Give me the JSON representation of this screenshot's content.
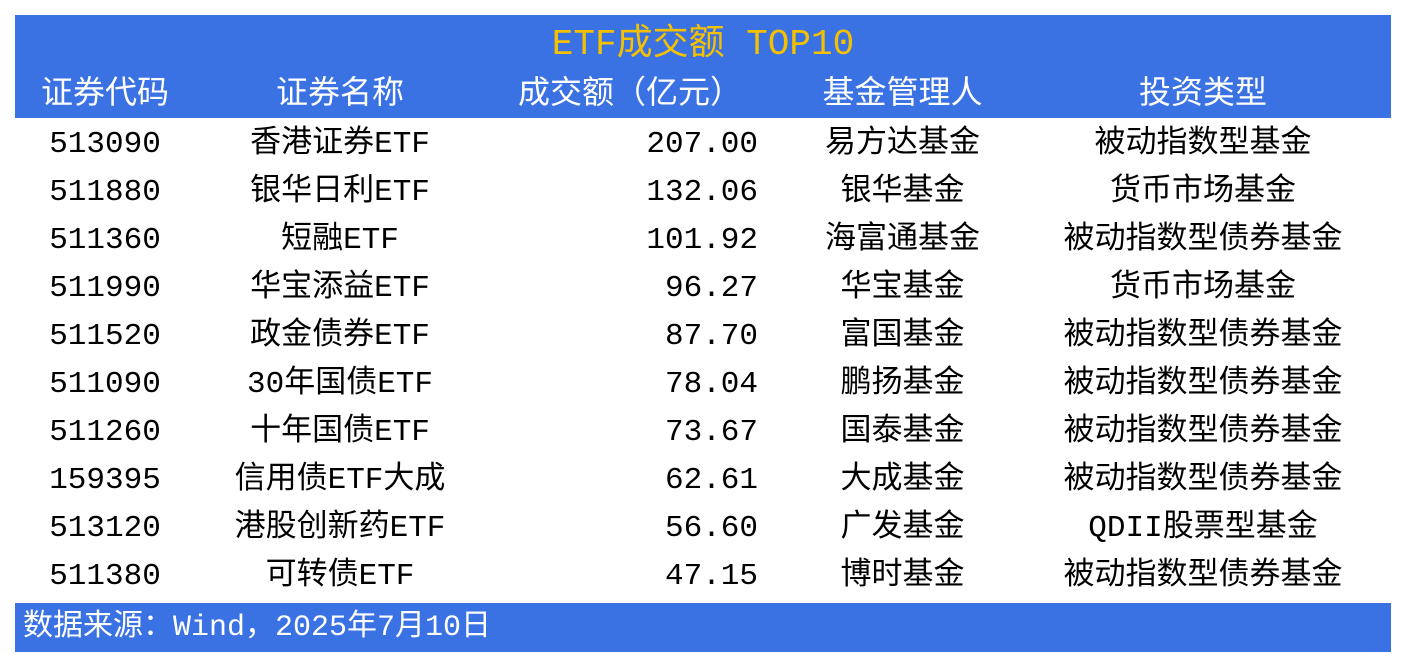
{
  "title": "ETF成交额 TOP10",
  "colors": {
    "header_bg": "#3A72E4",
    "title": "#F5C000",
    "header_text": "#FFFFFF"
  },
  "columns": [
    "证券代码",
    "证券名称",
    "成交额（亿元）",
    "基金管理人",
    "投资类型"
  ],
  "rows": [
    [
      "513090",
      "香港证券ETF",
      "207.00",
      "易方达基金",
      "被动指数型基金"
    ],
    [
      "511880",
      "银华日利ETF",
      "132.06",
      "银华基金",
      "货币市场基金"
    ],
    [
      "511360",
      "短融ETF",
      "101.92",
      "海富通基金",
      "被动指数型债券基金"
    ],
    [
      "511990",
      "华宝添益ETF",
      "96.27",
      "华宝基金",
      "货币市场基金"
    ],
    [
      "511520",
      "政金债券ETF",
      "87.70",
      "富国基金",
      "被动指数型债券基金"
    ],
    [
      "511090",
      "30年国债ETF",
      "78.04",
      "鹏扬基金",
      "被动指数型债券基金"
    ],
    [
      "511260",
      "十年国债ETF",
      "73.67",
      "国泰基金",
      "被动指数型债券基金"
    ],
    [
      "159395",
      "信用债ETF大成",
      "62.61",
      "大成基金",
      "被动指数型债券基金"
    ],
    [
      "513120",
      "港股创新药ETF",
      "56.60",
      "广发基金",
      "QDII股票型基金"
    ],
    [
      "511380",
      "可转债ETF",
      "47.15",
      "博时基金",
      "被动指数型债券基金"
    ]
  ],
  "footer": "数据来源：Wind，2025年7月10日"
}
